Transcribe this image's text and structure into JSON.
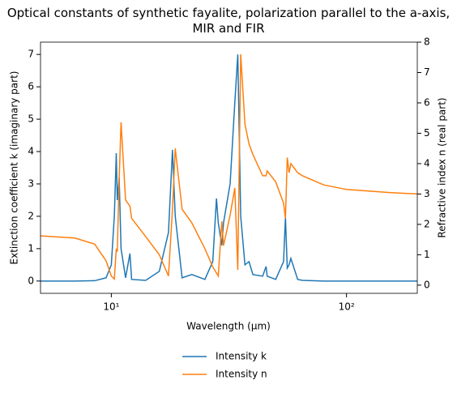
{
  "chart_data": {
    "type": "line",
    "title": "Optical constants of synthetic fayalite, polarization parallel to the a-axis, MIR and FIR",
    "x_label": "Wavelength (μm)",
    "y_label": "Extinction coefficient k (imaginary part)",
    "y2_label": "Refractive index n (real part)",
    "x_scale": "log",
    "xlim": [
      5,
      200
    ],
    "xticks": [
      {
        "value": 10,
        "label": "10¹"
      },
      {
        "value": 100,
        "label": "10²"
      }
    ],
    "ylim": [
      -0.38,
      7.38
    ],
    "yticks": [
      0,
      1,
      2,
      3,
      4,
      5,
      6,
      7
    ],
    "y2lim": [
      -0.27,
      8
    ],
    "y2ticks": [
      0,
      1,
      2,
      3,
      4,
      5,
      6,
      7,
      8
    ],
    "legend": "bottom",
    "x": [
      5,
      7,
      8.5,
      9.5,
      10,
      10.3,
      10.5,
      10.6,
      10.8,
      11,
      11.5,
      12,
      12.2,
      14,
      16,
      17.5,
      18.2,
      18.7,
      20,
      22,
      25,
      27,
      28,
      28.5,
      29.5,
      30,
      32,
      33.5,
      34.5,
      35.5,
      37,
      38.5,
      40,
      44,
      45.5,
      46,
      50,
      54,
      55,
      56,
      57,
      58,
      62,
      65,
      80,
      100,
      150,
      200
    ],
    "series": [
      {
        "name": "Intensity k",
        "color": "#1f77b4",
        "values": [
          0,
          0,
          0.01,
          0.1,
          0.5,
          2.0,
          3.95,
          2.5,
          3.2,
          1.0,
          0.1,
          0.85,
          0.05,
          0.02,
          0.3,
          1.5,
          4.05,
          2.0,
          0.1,
          0.2,
          0.05,
          0.6,
          2.55,
          1.8,
          1.1,
          1.8,
          3.0,
          5.5,
          7.0,
          2.0,
          0.5,
          0.6,
          0.2,
          0.15,
          0.45,
          0.15,
          0.05,
          0.6,
          1.97,
          0.4,
          0.5,
          0.7,
          0.05,
          0.02,
          0,
          0,
          0,
          0
        ]
      },
      {
        "name": "Intensity n",
        "color": "#ff7f0e",
        "axis": "y2",
        "values": [
          1.62,
          1.55,
          1.35,
          0.8,
          0.3,
          0.2,
          1.2,
          1.1,
          3.5,
          5.36,
          2.8,
          2.6,
          2.2,
          1.6,
          1.0,
          0.3,
          2.5,
          4.5,
          2.5,
          2.05,
          1.2,
          0.6,
          0.4,
          0.3,
          2.1,
          1.3,
          2.3,
          3.2,
          0.5,
          7.6,
          5.3,
          4.65,
          4.3,
          3.6,
          3.6,
          3.76,
          3.4,
          2.7,
          2.2,
          4.2,
          3.7,
          4.0,
          3.7,
          3.6,
          3.3,
          3.15,
          3.05,
          3.0
        ]
      }
    ]
  }
}
